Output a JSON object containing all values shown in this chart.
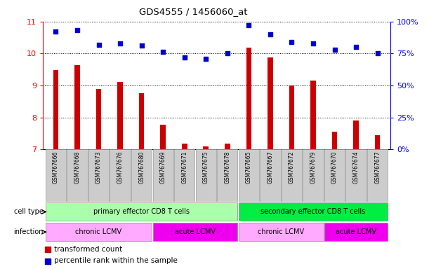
{
  "title": "GDS4555 / 1456060_at",
  "samples": [
    "GSM767666",
    "GSM767668",
    "GSM767673",
    "GSM767676",
    "GSM767680",
    "GSM767669",
    "GSM767671",
    "GSM767675",
    "GSM767678",
    "GSM767665",
    "GSM767667",
    "GSM767672",
    "GSM767679",
    "GSM767670",
    "GSM767674",
    "GSM767677"
  ],
  "bar_values": [
    9.48,
    9.63,
    8.88,
    9.1,
    8.75,
    7.78,
    7.17,
    7.1,
    7.17,
    10.18,
    9.87,
    8.99,
    9.15,
    7.56,
    7.9,
    7.44
  ],
  "dot_values": [
    92,
    93,
    82,
    83,
    81,
    76,
    72,
    71,
    75,
    97,
    90,
    84,
    83,
    78,
    80,
    75
  ],
  "bar_color": "#cc0000",
  "dot_color": "#0000cc",
  "ylim_left": [
    7,
    11
  ],
  "ylim_right": [
    0,
    100
  ],
  "yticks_left": [
    7,
    8,
    9,
    10,
    11
  ],
  "yticks_right": [
    0,
    25,
    50,
    75,
    100
  ],
  "ytick_labels_right": [
    "0%",
    "25%",
    "50%",
    "75%",
    "100%"
  ],
  "grid_values": [
    8,
    9,
    10
  ],
  "cell_type_groups": [
    {
      "label": "primary effector CD8 T cells",
      "start": 0,
      "end": 8,
      "color": "#aaffaa"
    },
    {
      "label": "secondary effector CD8 T cells",
      "start": 9,
      "end": 15,
      "color": "#00ee44"
    }
  ],
  "infection_groups": [
    {
      "label": "chronic LCMV",
      "start": 0,
      "end": 4,
      "color": "#ffaaff"
    },
    {
      "label": "acute LCMV",
      "start": 5,
      "end": 8,
      "color": "#ee00ee"
    },
    {
      "label": "chronic LCMV",
      "start": 9,
      "end": 12,
      "color": "#ffaaff"
    },
    {
      "label": "acute LCMV",
      "start": 13,
      "end": 15,
      "color": "#ee00ee"
    }
  ],
  "legend_items": [
    {
      "label": "transformed count",
      "color": "#cc0000"
    },
    {
      "label": "percentile rank within the sample",
      "color": "#0000cc"
    }
  ],
  "cell_type_label": "cell type",
  "infection_label": "infection",
  "bar_width": 0.25
}
